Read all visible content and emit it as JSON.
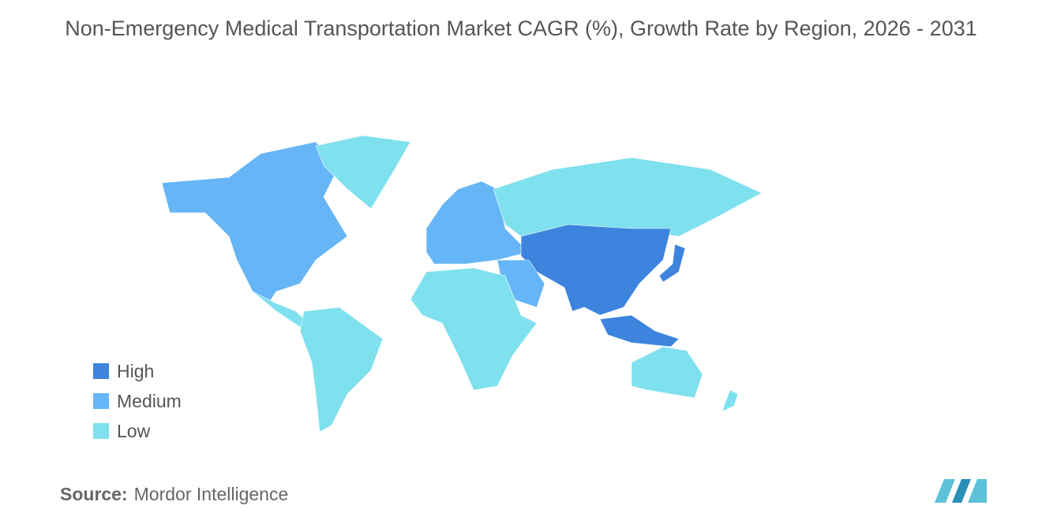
{
  "title": "Non-Emergency Medical Transportation Market CAGR (%), Growth Rate by Region, 2026 - 2031",
  "legend": [
    {
      "label": "High",
      "color": "#3c84de"
    },
    {
      "label": "Medium",
      "color": "#66b5f6"
    },
    {
      "label": "Low",
      "color": "#7fe0ee"
    }
  ],
  "source": {
    "label": "Source:",
    "text": "Mordor Intelligence"
  }
}
